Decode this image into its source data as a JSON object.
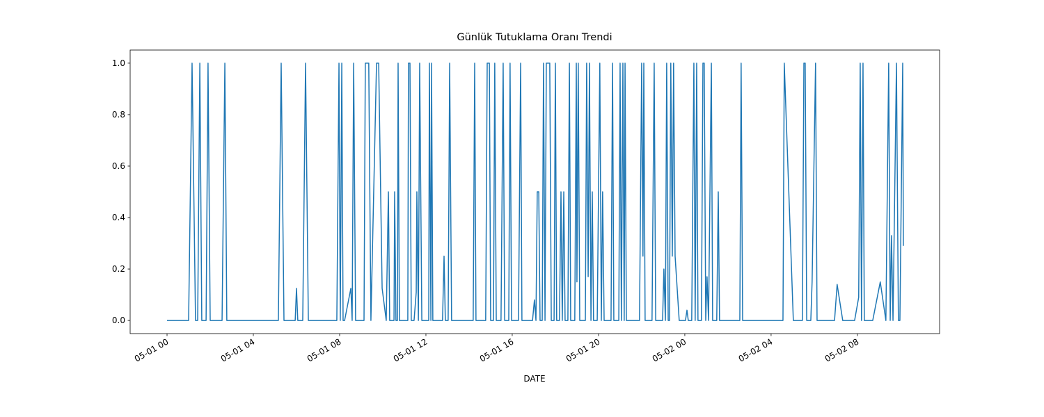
{
  "chart_data": {
    "type": "line",
    "title": "Günlük Tutuklama Oranı Trendi",
    "xlabel": "DATE",
    "color": "#1f77b4",
    "x": [
      0,
      1.0,
      1.16,
      1.32,
      1.42,
      1.52,
      1.61,
      1.81,
      1.9,
      2.0,
      2.55,
      2.68,
      2.77,
      5.16,
      5.29,
      5.42,
      5.94,
      6.0,
      6.06,
      6.29,
      6.42,
      6.55,
      7.87,
      7.97,
      8.03,
      8.1,
      8.16,
      8.23,
      8.52,
      8.58,
      8.65,
      8.74,
      9.13,
      9.19,
      9.35,
      9.45,
      9.71,
      9.81,
      9.97,
      10.16,
      10.26,
      10.32,
      10.52,
      10.55,
      10.61,
      10.68,
      10.71,
      10.77,
      11.16,
      11.19,
      11.26,
      11.32,
      11.45,
      11.55,
      11.58,
      11.65,
      11.71,
      11.81,
      12.13,
      12.16,
      12.23,
      12.26,
      12.32,
      12.77,
      12.84,
      12.9,
      13.03,
      13.1,
      13.19,
      14.19,
      14.26,
      14.32,
      14.77,
      14.84,
      14.94,
      15.0,
      15.13,
      15.19,
      15.26,
      15.48,
      15.58,
      15.65,
      15.84,
      15.9,
      15.97,
      16.29,
      16.39,
      16.45,
      16.94,
      17.03,
      17.1,
      17.16,
      17.23,
      17.29,
      17.39,
      17.45,
      17.52,
      17.58,
      17.74,
      17.81,
      17.94,
      18.0,
      18.06,
      18.19,
      18.26,
      18.32,
      18.39,
      18.45,
      18.58,
      18.65,
      18.71,
      18.9,
      18.97,
      19.0,
      19.06,
      19.13,
      19.39,
      19.45,
      19.52,
      19.58,
      19.65,
      19.71,
      19.77,
      19.94,
      20.06,
      20.13,
      20.19,
      20.26,
      20.58,
      20.65,
      20.71,
      20.94,
      21.0,
      21.06,
      21.13,
      21.19,
      21.23,
      21.29,
      21.9,
      22.0,
      22.06,
      22.1,
      22.16,
      22.48,
      22.58,
      22.65,
      22.97,
      23.03,
      23.1,
      23.16,
      23.23,
      23.29,
      23.35,
      23.42,
      23.48,
      23.55,
      23.74,
      24.03,
      24.1,
      24.16,
      24.32,
      24.42,
      24.48,
      24.55,
      24.61,
      24.77,
      24.84,
      24.9,
      24.97,
      25.03,
      25.1,
      25.23,
      25.29,
      25.48,
      25.55,
      25.61,
      26.55,
      26.61,
      26.68,
      28.55,
      28.61,
      29.03,
      29.45,
      29.52,
      29.58,
      29.65,
      29.84,
      29.9,
      30.06,
      30.13,
      30.94,
      31.06,
      31.32,
      31.87,
      32.06,
      32.13,
      32.19,
      32.26,
      32.32,
      32.42,
      32.71,
      33.06,
      33.32,
      33.45,
      33.52,
      33.58,
      33.65,
      33.81,
      33.9,
      33.97,
      34.1,
      34.13
    ],
    "values": [
      0,
      0,
      1,
      0,
      0,
      1,
      0,
      0,
      1,
      0,
      0,
      1,
      0,
      0,
      1,
      0,
      0,
      0.125,
      0,
      0,
      1,
      0,
      0,
      1,
      0,
      1,
      0,
      0,
      0.125,
      0,
      1,
      0,
      0,
      1,
      1,
      0,
      1,
      1,
      0.125,
      0,
      0.5,
      0,
      0,
      0.5,
      0,
      0,
      1,
      0,
      0,
      1,
      1,
      0,
      0,
      0.11,
      0.5,
      0,
      1,
      0,
      0,
      1,
      0,
      1,
      0,
      0,
      0.25,
      0,
      0,
      1,
      0,
      0,
      1,
      0,
      0,
      1,
      1,
      0,
      0,
      1,
      0,
      0,
      1,
      0,
      0,
      1,
      0,
      0,
      1,
      0,
      0,
      0.08,
      0,
      0.5,
      0.5,
      0,
      0,
      1,
      0,
      1,
      1,
      0,
      0,
      1,
      0,
      0,
      0.5,
      0,
      0.5,
      0,
      0,
      1,
      0,
      0,
      1,
      0.15,
      1,
      0,
      0,
      1,
      0.17,
      1,
      0,
      0.5,
      0,
      0,
      1,
      0,
      0.5,
      0,
      0,
      1,
      0,
      0,
      1,
      0,
      1,
      0,
      1,
      0,
      0,
      1,
      0.25,
      1,
      0,
      0,
      1,
      0,
      0,
      0.2,
      0,
      1,
      0,
      0,
      1,
      0.25,
      1,
      0.25,
      0,
      0,
      0.04,
      0,
      0,
      1,
      0,
      1,
      0,
      0,
      1,
      1,
      0,
      0.17,
      0,
      1,
      0,
      0,
      0.5,
      0,
      0,
      1,
      0,
      0,
      1,
      0,
      0,
      1,
      1,
      0,
      0,
      0.15,
      1,
      0,
      0,
      0.14,
      0,
      0,
      0.09,
      1,
      0,
      1,
      0,
      0,
      0,
      0.15,
      0,
      1,
      0,
      0.33,
      0,
      1,
      0,
      0,
      1,
      0.29
    ],
    "xlim": [
      -1.71,
      35.81
    ],
    "xticks": [
      {
        "value": 0,
        "label": "05-01 00"
      },
      {
        "value": 4,
        "label": "05-01 04"
      },
      {
        "value": 8,
        "label": "05-01 08"
      },
      {
        "value": 12,
        "label": "05-01 12"
      },
      {
        "value": 16,
        "label": "05-01 16"
      },
      {
        "value": 20,
        "label": "05-01 20"
      },
      {
        "value": 24,
        "label": "05-02 00"
      },
      {
        "value": 28,
        "label": "05-02 04"
      },
      {
        "value": 32,
        "label": "05-02 08"
      }
    ],
    "ylim": [
      -0.051,
      1.051
    ],
    "yticks": [
      {
        "value": 0,
        "label": "0.0"
      },
      {
        "value": 0.2,
        "label": "0.2"
      },
      {
        "value": 0.4,
        "label": "0.4"
      },
      {
        "value": 0.6,
        "label": "0.6"
      },
      {
        "value": 0.8,
        "label": "0.8"
      },
      {
        "value": 1,
        "label": "1.0"
      }
    ],
    "grid": false
  }
}
